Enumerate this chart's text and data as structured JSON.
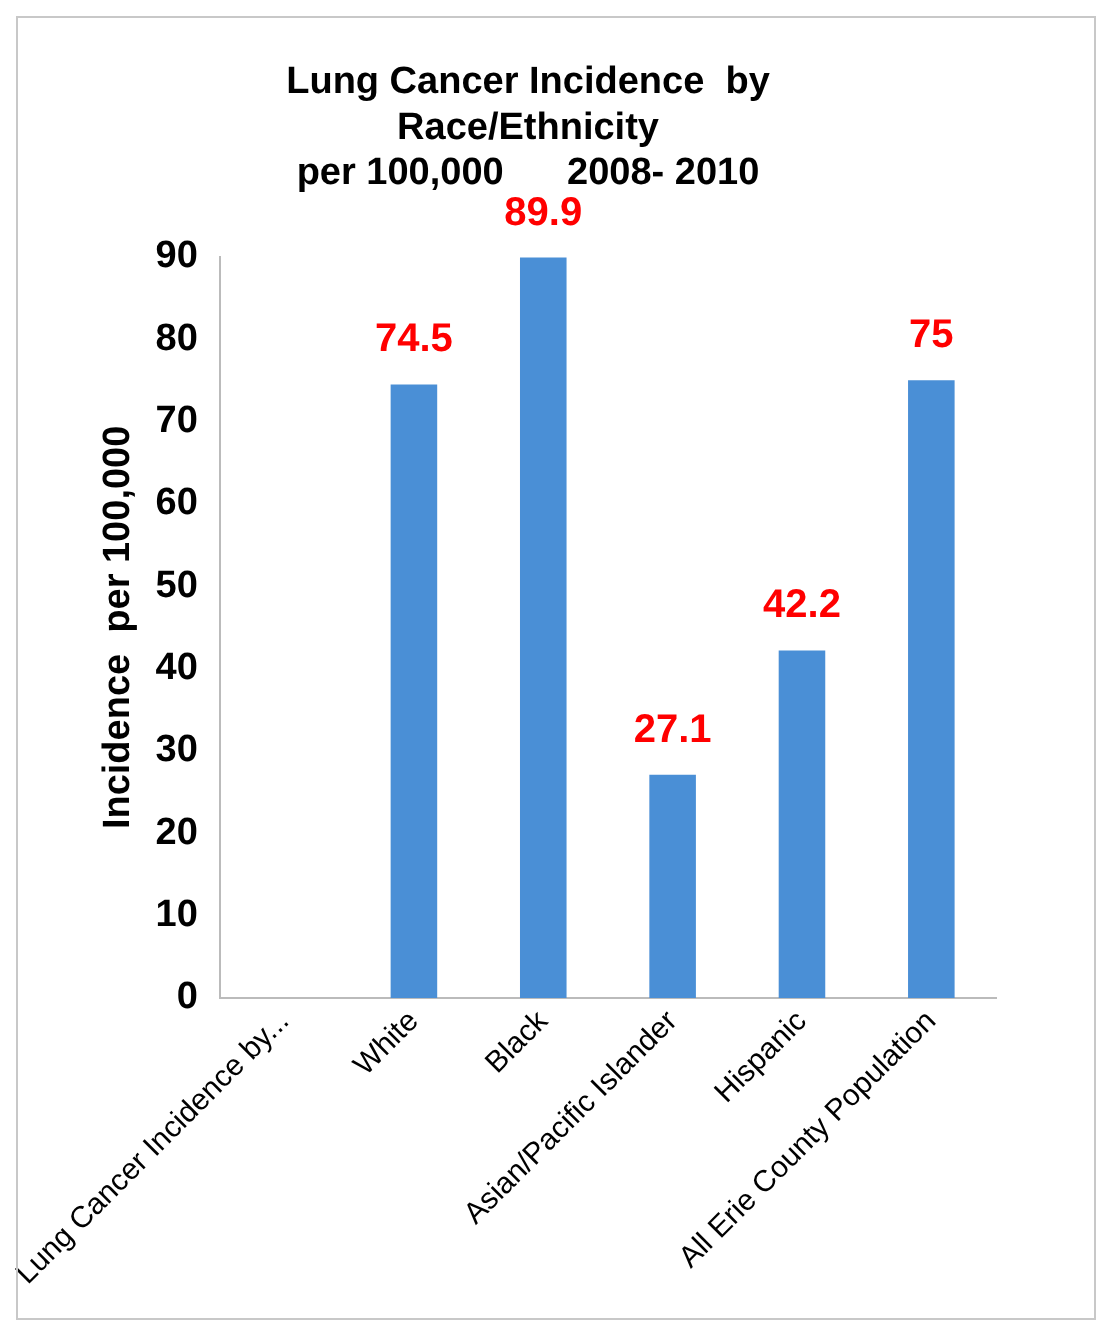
{
  "chart_data": {
    "type": "bar",
    "title": "Lung Cancer Incidence  by\nRace/Ethnicity\nper 100,000      2008- 2010",
    "ylabel": "Incidence  per 100,000",
    "categories": [
      "Lung Cancer Incidence by...",
      "White",
      "Black",
      "Asian/Pacific Islander",
      "Hispanic",
      "All Erie County Population"
    ],
    "values": [
      null,
      74.5,
      89.9,
      27.1,
      42.2,
      75
    ],
    "color": "#4a8fd6",
    "ylim": [
      0,
      90
    ],
    "yticks": [
      0,
      10,
      20,
      30,
      40,
      50,
      60,
      70,
      80,
      90
    ],
    "grid": false,
    "legend": false,
    "data_labels": true
  }
}
